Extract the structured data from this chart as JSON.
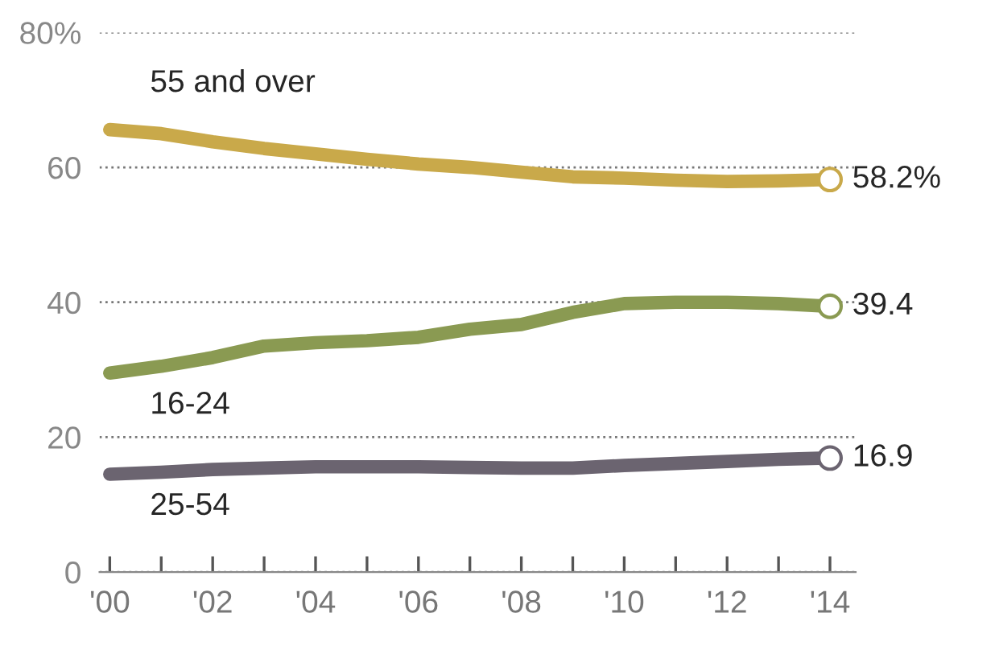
{
  "chart_data": {
    "type": "line",
    "x": [
      2000,
      2001,
      2002,
      2003,
      2004,
      2005,
      2006,
      2007,
      2008,
      2009,
      2010,
      2011,
      2012,
      2013,
      2014
    ],
    "series": [
      {
        "name": "55 and over",
        "color": "#c9a94a",
        "values": [
          65.6,
          65,
          63.8,
          62.8,
          62,
          61.2,
          60.5,
          60,
          59.3,
          58.6,
          58.4,
          58.1,
          57.9,
          58,
          58.2
        ],
        "value_labels": [
          null,
          null,
          null,
          null,
          null,
          null,
          null,
          null,
          null,
          null,
          null,
          null,
          null,
          null,
          "58.2%"
        ]
      },
      {
        "name": "16-24",
        "color": "#8a9a52",
        "values": [
          29.5,
          30.5,
          31.8,
          33.5,
          34,
          34.3,
          34.8,
          36,
          36.7,
          38.5,
          39.8,
          40,
          40,
          39.8,
          39.4
        ],
        "value_labels": [
          null,
          null,
          null,
          null,
          null,
          null,
          null,
          null,
          null,
          null,
          null,
          null,
          null,
          null,
          "39.4"
        ]
      },
      {
        "name": "25-54",
        "color": "#6b6470",
        "values": [
          14.5,
          14.8,
          15.2,
          15.4,
          15.6,
          15.6,
          15.6,
          15.5,
          15.4,
          15.4,
          15.8,
          16.1,
          16.4,
          16.7,
          16.9
        ],
        "value_labels": [
          null,
          null,
          null,
          null,
          null,
          null,
          null,
          null,
          null,
          null,
          null,
          null,
          null,
          null,
          "16.9"
        ]
      }
    ],
    "xlim": [
      1999.8,
      2014.5
    ],
    "xticks": [
      {
        "value": 2000,
        "label": "'00"
      },
      {
        "value": 2001,
        "label": null
      },
      {
        "value": 2002,
        "label": "'02"
      },
      {
        "value": 2003,
        "label": null
      },
      {
        "value": 2004,
        "label": "'04"
      },
      {
        "value": 2005,
        "label": null
      },
      {
        "value": 2006,
        "label": "'06"
      },
      {
        "value": 2007,
        "label": null
      },
      {
        "value": 2008,
        "label": "'08"
      },
      {
        "value": 2009,
        "label": null
      },
      {
        "value": 2010,
        "label": "'10"
      },
      {
        "value": 2011,
        "label": null
      },
      {
        "value": 2012,
        "label": "'12"
      },
      {
        "value": 2013,
        "label": null
      },
      {
        "value": 2014,
        "label": "'14"
      }
    ],
    "ylim": [
      0,
      80
    ],
    "yticks": [
      0,
      20,
      40,
      60,
      {
        "value": 80,
        "label": "80%"
      }
    ],
    "grid": "y",
    "legend": false,
    "line_style": "solid"
  }
}
